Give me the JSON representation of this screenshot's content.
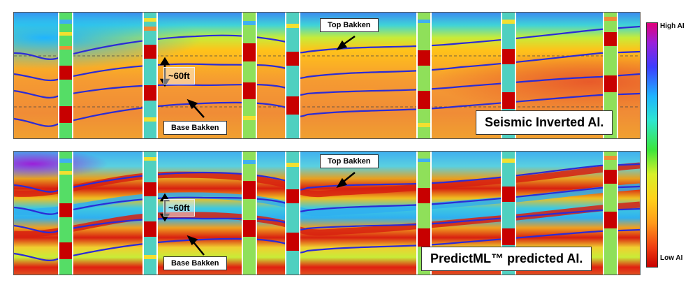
{
  "panels": {
    "top": {
      "caption": "Seismic Inverted AI.",
      "top_callout": "Top Bakken",
      "base_callout": "Base Bakken",
      "thickness_label": "~60ft"
    },
    "bottom": {
      "caption": "PredictML™ predicted AI.",
      "top_callout": "Top Bakken",
      "base_callout": "Base Bakken",
      "thickness_label": "~60ft"
    }
  },
  "colorbar": {
    "high_label": "High AI",
    "low_label": "Low AI",
    "colors": [
      "#e0007a",
      "#9b1fd9",
      "#3d3dff",
      "#1fb4ff",
      "#2ee6d0",
      "#3be63b",
      "#d7f02a",
      "#ffd21a",
      "#ff9a1a",
      "#f03d12",
      "#c80000"
    ]
  },
  "horizon_color": "#2b2bd6",
  "well_log_color": "#c80000"
}
